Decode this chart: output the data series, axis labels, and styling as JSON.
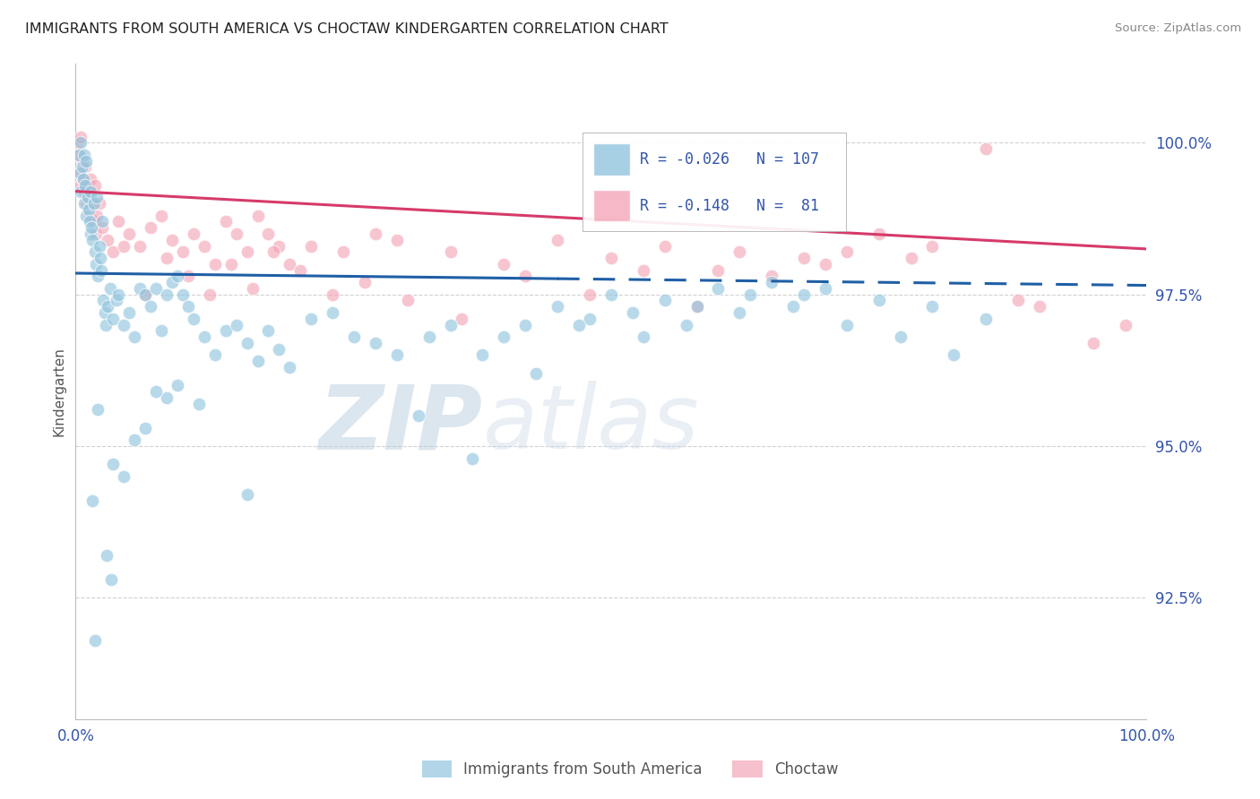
{
  "title": "IMMIGRANTS FROM SOUTH AMERICA VS CHOCTAW KINDERGARTEN CORRELATION CHART",
  "source_text": "Source: ZipAtlas.com",
  "ylabel": "Kindergarten",
  "legend_label_1": "Immigrants from South America",
  "legend_label_2": "Choctaw",
  "r1": -0.026,
  "n1": 107,
  "r2": -0.148,
  "n2": 81,
  "xlim": [
    0.0,
    100.0
  ],
  "ylim": [
    90.5,
    101.3
  ],
  "yticks": [
    92.5,
    95.0,
    97.5,
    100.0
  ],
  "ytick_labels": [
    "92.5%",
    "95.0%",
    "97.5%",
    "100.0%"
  ],
  "xtick_labels": [
    "0.0%",
    "100.0%"
  ],
  "color_blue": "#92c5de",
  "color_pink": "#f4a6b8",
  "trend_color_blue": "#1f5fa6",
  "trend_color_pink": "#d63a6a",
  "background_color": "#ffffff",
  "watermark_color_zip": "#c8d8e8",
  "watermark_color_atlas": "#d8e4ee",
  "blue_x": [
    0.3,
    0.4,
    0.5,
    0.5,
    0.6,
    0.7,
    0.8,
    0.8,
    0.9,
    1.0,
    1.0,
    1.1,
    1.2,
    1.3,
    1.4,
    1.4,
    1.5,
    1.6,
    1.7,
    1.8,
    1.9,
    2.0,
    2.1,
    2.2,
    2.3,
    2.4,
    2.5,
    2.6,
    2.7,
    2.8,
    3.0,
    3.2,
    3.5,
    3.8,
    4.0,
    4.5,
    5.0,
    5.5,
    6.0,
    6.5,
    7.0,
    7.5,
    8.0,
    8.5,
    9.0,
    9.5,
    10.0,
    10.5,
    11.0,
    12.0,
    13.0,
    14.0,
    15.0,
    16.0,
    17.0,
    18.0,
    19.0,
    20.0,
    22.0,
    24.0,
    26.0,
    28.0,
    30.0,
    33.0,
    35.0,
    38.0,
    40.0,
    42.0,
    45.0,
    48.0,
    50.0,
    52.0,
    55.0,
    58.0,
    60.0,
    63.0,
    65.0,
    68.0,
    70.0,
    75.0,
    80.0,
    43.0,
    47.0,
    53.0,
    57.0,
    62.0,
    67.0,
    72.0,
    77.0,
    82.0,
    85.0,
    32.0,
    37.0,
    16.0,
    5.5,
    8.5,
    3.5,
    2.1,
    4.5,
    6.5,
    7.5,
    9.5,
    11.5,
    1.8,
    2.9,
    3.3,
    1.6
  ],
  "blue_y": [
    99.8,
    99.5,
    100.0,
    99.2,
    99.6,
    99.4,
    99.8,
    99.0,
    99.3,
    99.7,
    98.8,
    99.1,
    98.9,
    98.7,
    99.2,
    98.5,
    98.6,
    98.4,
    99.0,
    98.2,
    98.0,
    99.1,
    97.8,
    98.3,
    98.1,
    97.9,
    98.7,
    97.4,
    97.2,
    97.0,
    97.3,
    97.6,
    97.1,
    97.4,
    97.5,
    97.0,
    97.2,
    96.8,
    97.6,
    97.5,
    97.3,
    97.6,
    96.9,
    97.5,
    97.7,
    97.8,
    97.5,
    97.3,
    97.1,
    96.8,
    96.5,
    96.9,
    97.0,
    96.7,
    96.4,
    96.9,
    96.6,
    96.3,
    97.1,
    97.2,
    96.8,
    96.7,
    96.5,
    96.8,
    97.0,
    96.5,
    96.8,
    97.0,
    97.3,
    97.1,
    97.5,
    97.2,
    97.4,
    97.3,
    97.6,
    97.5,
    97.7,
    97.5,
    97.6,
    97.4,
    97.3,
    96.2,
    97.0,
    96.8,
    97.0,
    97.2,
    97.3,
    97.0,
    96.8,
    96.5,
    97.1,
    95.5,
    94.8,
    94.2,
    95.1,
    95.8,
    94.7,
    95.6,
    94.5,
    95.3,
    95.9,
    96.0,
    95.7,
    91.8,
    93.2,
    92.8,
    94.1
  ],
  "pink_x": [
    0.2,
    0.3,
    0.4,
    0.5,
    0.5,
    0.6,
    0.7,
    0.8,
    0.9,
    1.0,
    1.1,
    1.2,
    1.3,
    1.4,
    1.5,
    1.6,
    1.7,
    1.8,
    1.9,
    2.0,
    2.2,
    2.5,
    3.0,
    3.5,
    4.0,
    5.0,
    6.0,
    7.0,
    8.0,
    9.0,
    10.0,
    11.0,
    12.0,
    13.0,
    14.0,
    15.0,
    16.0,
    17.0,
    18.0,
    19.0,
    20.0,
    22.0,
    25.0,
    28.0,
    30.0,
    35.0,
    40.0,
    45.0,
    50.0,
    55.0,
    60.0,
    62.0,
    65.0,
    68.0,
    70.0,
    72.0,
    75.0,
    78.0,
    80.0,
    85.0,
    88.0,
    90.0,
    95.0,
    98.0,
    4.5,
    6.5,
    8.5,
    10.5,
    12.5,
    14.5,
    16.5,
    18.5,
    21.0,
    24.0,
    27.0,
    31.0,
    36.0,
    42.0,
    48.0,
    53.0,
    58.0
  ],
  "pink_y": [
    100.0,
    99.8,
    99.5,
    100.1,
    99.3,
    99.7,
    99.4,
    99.2,
    99.6,
    99.0,
    99.3,
    99.1,
    98.8,
    99.4,
    99.2,
    99.0,
    98.7,
    99.3,
    98.5,
    98.8,
    99.0,
    98.6,
    98.4,
    98.2,
    98.7,
    98.5,
    98.3,
    98.6,
    98.8,
    98.4,
    98.2,
    98.5,
    98.3,
    98.0,
    98.7,
    98.5,
    98.2,
    98.8,
    98.5,
    98.3,
    98.0,
    98.3,
    98.2,
    98.5,
    98.4,
    98.2,
    98.0,
    98.4,
    98.1,
    98.3,
    97.9,
    98.2,
    97.8,
    98.1,
    98.0,
    98.2,
    98.5,
    98.1,
    98.3,
    99.9,
    97.4,
    97.3,
    96.7,
    97.0,
    98.3,
    97.5,
    98.1,
    97.8,
    97.5,
    98.0,
    97.6,
    98.2,
    97.9,
    97.5,
    97.7,
    97.4,
    97.1,
    97.8,
    97.5,
    97.9,
    97.3
  ]
}
